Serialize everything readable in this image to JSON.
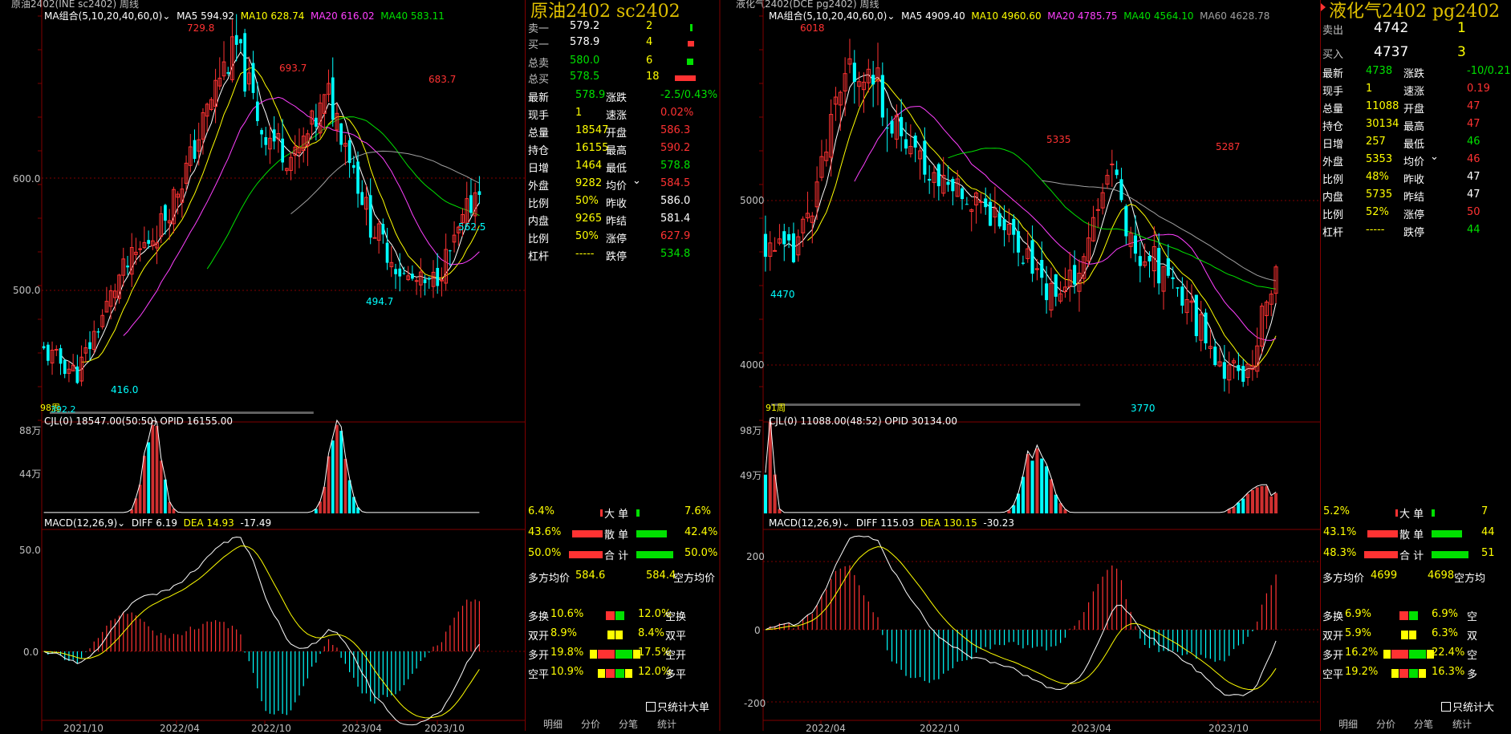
{
  "left": {
    "window_title": "原油2402(INE sc2402) 周线",
    "ma_header": {
      "label": "MA组合(5,10,20,40,60,0)",
      "ma5": "MA5 594.92",
      "ma10": "MA10 628.74",
      "ma20": "MA20 616.02",
      "ma40": "MA40 583.11"
    },
    "y_labels": [
      "600.0",
      "500.0"
    ],
    "price_labels": {
      "p1": "729.8",
      "p2": "693.7",
      "p3": "683.7",
      "p4": "562.5",
      "p5": "494.7",
      "p6": "416.0",
      "p7": "98周",
      "p8": "392.2"
    },
    "vol_header": "CJL(0)  18547.00(50:50)  OPID 16155.00",
    "vol_y": [
      "88万",
      "44万"
    ],
    "macd_header": {
      "label": "MACD(12,26,9)",
      "diff": "DIFF 6.19",
      "dea": "DEA 14.93",
      "macd": "-17.49"
    },
    "macd_y": [
      "50.0",
      "0.0"
    ],
    "x_labels": [
      "2021/10",
      "2022/04",
      "2022/10",
      "2023/04",
      "2023/10"
    ]
  },
  "left_quote": {
    "title": "原油2402  sc2402",
    "book": [
      {
        "label": "卖一",
        "price": "579.2",
        "qty": "2"
      },
      {
        "label": "买一",
        "price": "578.9",
        "qty": "4"
      }
    ],
    "totals": [
      {
        "label": "总卖",
        "price": "580.0",
        "qty": "6"
      },
      {
        "label": "总买",
        "price": "578.5",
        "qty": "18"
      }
    ],
    "stats": [
      {
        "k1": "最新",
        "v1": "578.9",
        "k2": "涨跌",
        "v2": "-2.5/0.43%"
      },
      {
        "k1": "现手",
        "v1": "1",
        "k2": "速涨",
        "v2": "0.02%"
      },
      {
        "k1": "总量",
        "v1": "18547",
        "k2": "开盘",
        "v2": "586.3"
      },
      {
        "k1": "持仓",
        "v1": "16155",
        "k2": "最高",
        "v2": "590.2"
      },
      {
        "k1": "日增",
        "v1": "1464",
        "k2": "最低",
        "v2": "578.8"
      },
      {
        "k1": "外盘",
        "v1": "9282",
        "k2": "均价",
        "v2": "584.5"
      },
      {
        "k1": "比例",
        "v1": "50%",
        "k2": "昨收",
        "v2": "586.0"
      },
      {
        "k1": "内盘",
        "v1": "9265",
        "k2": "昨结",
        "v2": "581.4"
      },
      {
        "k1": "比例",
        "v1": "50%",
        "k2": "涨停",
        "v2": "627.9"
      },
      {
        "k1": "杠杆",
        "v1": "-----",
        "k2": "跌停",
        "v2": "534.8"
      }
    ],
    "flow": [
      {
        "l": "6.4%",
        "m": "大 单",
        "r": "7.6%"
      },
      {
        "l": "43.6%",
        "m": "散 单",
        "r": "42.4%"
      },
      {
        "l": "50.0%",
        "m": "合 计",
        "r": "50.0%"
      }
    ],
    "avg": {
      "l": "多方均价",
      "lv": "584.6",
      "rv": "584.4",
      "r": "空方均价"
    },
    "ops": [
      {
        "l": "多换",
        "lv": "10.6%",
        "rv": "12.0%",
        "r": "空换"
      },
      {
        "l": "双开",
        "lv": "8.9%",
        "rv": "8.4%",
        "r": "双平"
      },
      {
        "l": "多开",
        "lv": "19.8%",
        "rv": "17.5%",
        "r": "空开"
      },
      {
        "l": "空平",
        "lv": "10.9%",
        "rv": "12.0%",
        "r": "多平"
      }
    ],
    "checkbox": "只统计大单",
    "tabs": [
      "明细",
      "分价",
      "分笔",
      "统计"
    ]
  },
  "right": {
    "window_title": "液化气2402(DCE pg2402) 周线",
    "ma_header": {
      "label": "MA组合(5,10,20,40,60,0)",
      "ma5": "MA5 4909.40",
      "ma10": "MA10 4960.60",
      "ma20": "MA20 4785.75",
      "ma40": "MA40 4564.10",
      "ma60": "MA60 4628.78"
    },
    "y_labels": [
      "5000",
      "4000"
    ],
    "price_labels": {
      "p1": "6018",
      "p2": "5335",
      "p3": "5287",
      "p4": "4470",
      "p5": "3770",
      "p6": "91周"
    },
    "vol_header": "CJL(0)  11088.00(48:52)  OPID 30134.00",
    "vol_y": [
      "98万",
      "49万"
    ],
    "macd_header": {
      "label": "MACD(12,26,9)",
      "diff": "DIFF 115.03",
      "dea": "DEA 130.15",
      "macd": "-30.23"
    },
    "macd_y": [
      "200",
      "0",
      "-200"
    ],
    "x_labels": [
      "2022/04",
      "2022/10",
      "2023/04",
      "2023/10"
    ]
  },
  "right_quote": {
    "title": "液化气2402  pg2402",
    "book": [
      {
        "label": "卖出",
        "price": "4742",
        "qty": "1"
      },
      {
        "label": "买入",
        "price": "4737",
        "qty": "3"
      }
    ],
    "stats": [
      {
        "k1": "最新",
        "v1": "4738",
        "k2": "涨跌",
        "v2": "-10/0.21"
      },
      {
        "k1": "现手",
        "v1": "1",
        "k2": "速涨",
        "v2": "0.19"
      },
      {
        "k1": "总量",
        "v1": "11088",
        "k2": "开盘",
        "v2": "47"
      },
      {
        "k1": "持仓",
        "v1": "30134",
        "k2": "最高",
        "v2": "47"
      },
      {
        "k1": "日增",
        "v1": "257",
        "k2": "最低",
        "v2": "46"
      },
      {
        "k1": "外盘",
        "v1": "5353",
        "k2": "均价",
        "v2": "46"
      },
      {
        "k1": "比例",
        "v1": "48%",
        "k2": "昨收",
        "v2": "47"
      },
      {
        "k1": "内盘",
        "v1": "5735",
        "k2": "昨结",
        "v2": "47"
      },
      {
        "k1": "比例",
        "v1": "52%",
        "k2": "涨停",
        "v2": "50"
      },
      {
        "k1": "杠杆",
        "v1": "-----",
        "k2": "跌停",
        "v2": "44"
      }
    ],
    "flow": [
      {
        "l": "5.2%",
        "m": "大 单",
        "r": "7"
      },
      {
        "l": "43.1%",
        "m": "散 单",
        "r": "44"
      },
      {
        "l": "48.3%",
        "m": "合 计",
        "r": "51"
      }
    ],
    "avg": {
      "l": "多方均价",
      "lv": "4699",
      "rv": "4698",
      "r": "空方均"
    },
    "ops": [
      {
        "l": "多换",
        "lv": "6.9%",
        "rv": "6.9%",
        "r": "空"
      },
      {
        "l": "双开",
        "lv": "5.9%",
        "rv": "6.3%",
        "r": "双"
      },
      {
        "l": "多开",
        "lv": "16.2%",
        "rv": "22.4%",
        "r": "空"
      },
      {
        "l": "空平",
        "lv": "19.2%",
        "rv": "16.3%",
        "r": "多"
      }
    ],
    "checkbox": "只统计大",
    "tabs": [
      "明细",
      "分价",
      "分笔",
      "统计"
    ]
  },
  "colors": {
    "up": "#ff3232",
    "down": "#00ffff",
    "ma5": "#ffffff",
    "ma10": "#ffff00",
    "ma20": "#ff40ff",
    "ma40": "#00e000",
    "ma60": "#a0a0a0",
    "grid": "#800000"
  }
}
